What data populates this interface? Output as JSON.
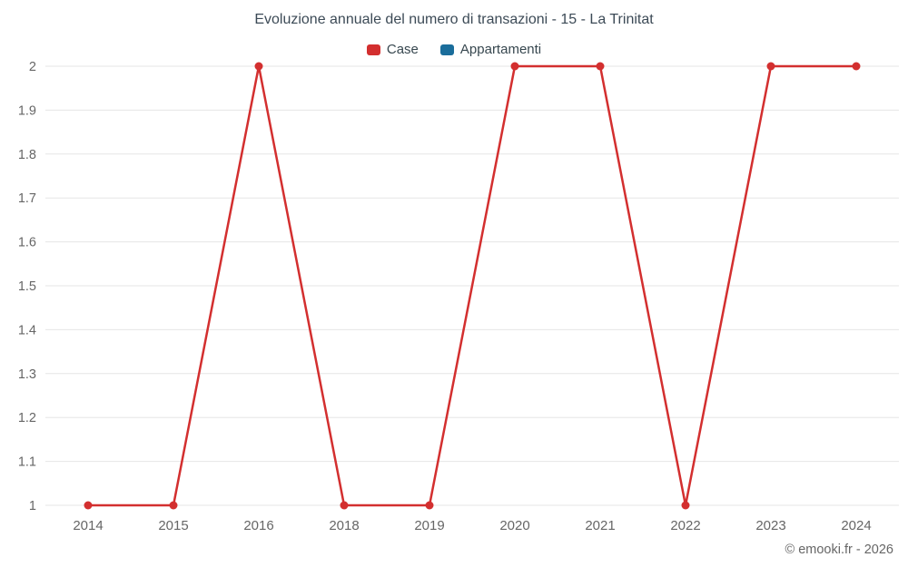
{
  "chart_data": {
    "type": "line",
    "title": "Evoluzione annuale del numero di transazioni - 15 - La Trinitat",
    "categories": [
      "2014",
      "2015",
      "2016",
      "2018",
      "2019",
      "2020",
      "2021",
      "2022",
      "2023",
      "2024"
    ],
    "series": [
      {
        "name": "Case",
        "color": "#d32f2f",
        "values": [
          1,
          1,
          2,
          1,
          1,
          2,
          2,
          1,
          2,
          2
        ]
      },
      {
        "name": "Appartamenti",
        "color": "#1a6d9b",
        "values": []
      }
    ],
    "ylim": [
      1,
      2
    ],
    "yticks": [
      {
        "value": 1,
        "label": "1"
      },
      {
        "value": 1.1,
        "label": "1.1"
      },
      {
        "value": 1.2,
        "label": "1.2"
      },
      {
        "value": 1.3,
        "label": "1.3"
      },
      {
        "value": 1.4,
        "label": "1.4"
      },
      {
        "value": 1.5,
        "label": "1.5"
      },
      {
        "value": 1.6,
        "label": "1.6"
      },
      {
        "value": 1.7,
        "label": "1.7"
      },
      {
        "value": 1.8,
        "label": "1.8"
      },
      {
        "value": 1.9,
        "label": "1.9"
      },
      {
        "value": 2,
        "label": "2"
      }
    ],
    "grid": "horizontal",
    "grid_color": "#e6e6e6",
    "legend_position": "top",
    "xlabel": "",
    "ylabel": ""
  },
  "footer": {
    "text": "© emooki.fr - 2026"
  }
}
